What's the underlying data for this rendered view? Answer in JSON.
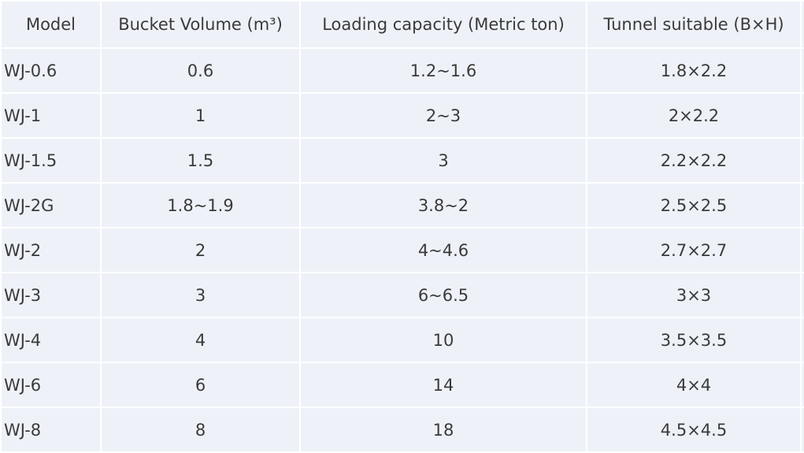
{
  "table": {
    "header": [
      "Model",
      "Bucket Volume (m³)",
      "Loading capacity (Metric ton)",
      "Tunnel suitable (B×H)"
    ],
    "rows": [
      [
        "WJ-0.6",
        "0.6",
        "1.2~1.6",
        "1.8×2.2"
      ],
      [
        "WJ-1",
        "1",
        "2~3",
        "2×2.2"
      ],
      [
        "WJ-1.5",
        "1.5",
        "3",
        "2.2×2.2"
      ],
      [
        "WJ-2G",
        "1.8~1.9",
        "3.8~2",
        "2.5×2.5"
      ],
      [
        "WJ-2",
        "2",
        "4~4.6",
        "2.7×2.7"
      ],
      [
        "WJ-3",
        "3",
        "6~6.5",
        "3×3"
      ],
      [
        "WJ-4",
        "4",
        "10",
        "3.5×3.5"
      ],
      [
        "WJ-6",
        "6",
        "14",
        "4×4"
      ],
      [
        "WJ-8",
        "8",
        "18",
        "4.5×4.5"
      ]
    ]
  }
}
